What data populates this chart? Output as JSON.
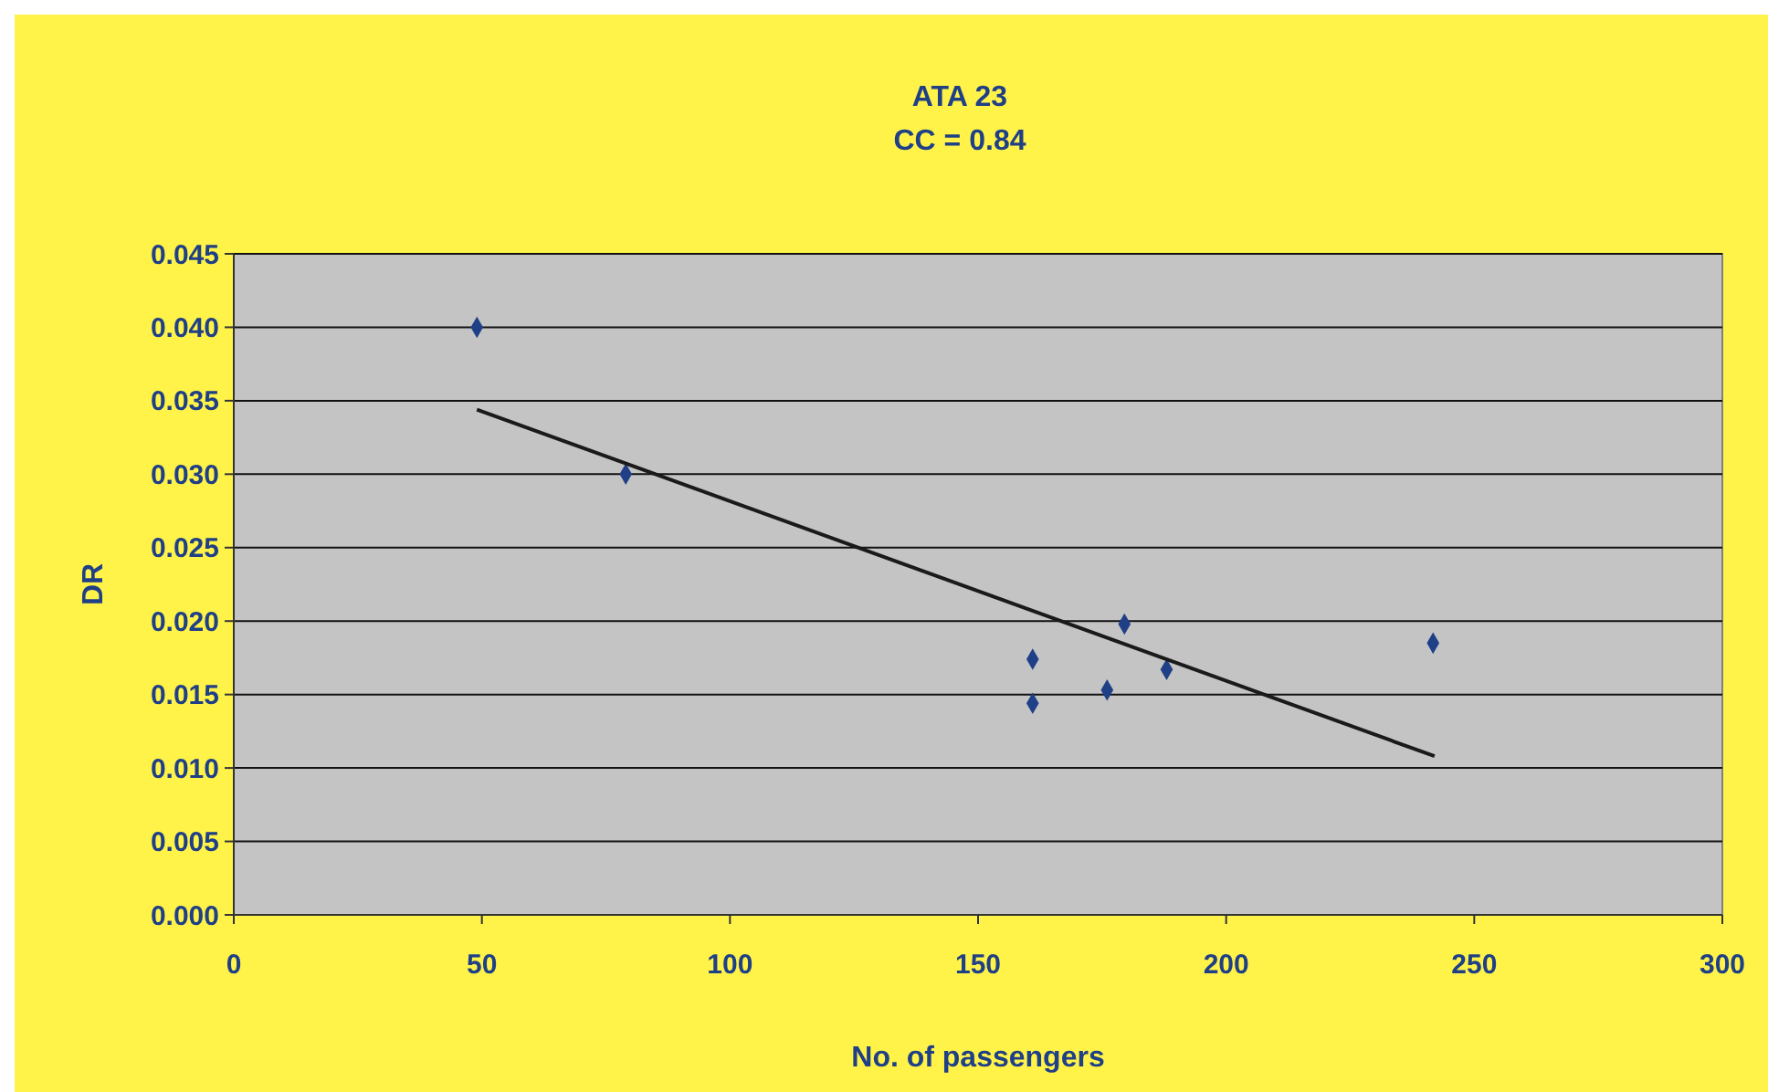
{
  "chart_data": {
    "type": "scatter",
    "title": "ATA 23",
    "subtitle": "CC = 0.84",
    "xlabel": "No. of passengers",
    "ylabel": "DR",
    "xlim": [
      0,
      300
    ],
    "xticks": [
      0,
      50,
      100,
      150,
      200,
      250,
      300
    ],
    "ylim": [
      0,
      0.045
    ],
    "yticks": [
      {
        "value": 0,
        "label": "0.000"
      },
      {
        "value": 0.005,
        "label": "0.005"
      },
      {
        "value": 0.01,
        "label": "0.010"
      },
      {
        "value": 0.015,
        "label": "0.015"
      },
      {
        "value": 0.02,
        "label": "0.020"
      },
      {
        "value": 0.025,
        "label": "0.025"
      },
      {
        "value": 0.03,
        "label": "0.030"
      },
      {
        "value": 0.035,
        "label": "0.035"
      },
      {
        "value": 0.04,
        "label": "0.040"
      },
      {
        "value": 0.045,
        "label": "0.045"
      }
    ],
    "grid": "y",
    "series": [
      {
        "color": "#1f3f86",
        "marker": "diamond",
        "x": [
          49,
          79,
          161,
          161,
          176,
          179.5,
          188,
          241.7
        ],
        "values": [
          0.04,
          0.03,
          0.0174,
          0.0144,
          0.0153,
          0.0198,
          0.0167,
          0.0185
        ]
      },
      {
        "type": "line",
        "color": "#1a1a1a",
        "marker": "none",
        "line_style": "solid",
        "x": [
          49,
          242
        ],
        "values": [
          0.0344,
          0.0108
        ]
      }
    ]
  }
}
